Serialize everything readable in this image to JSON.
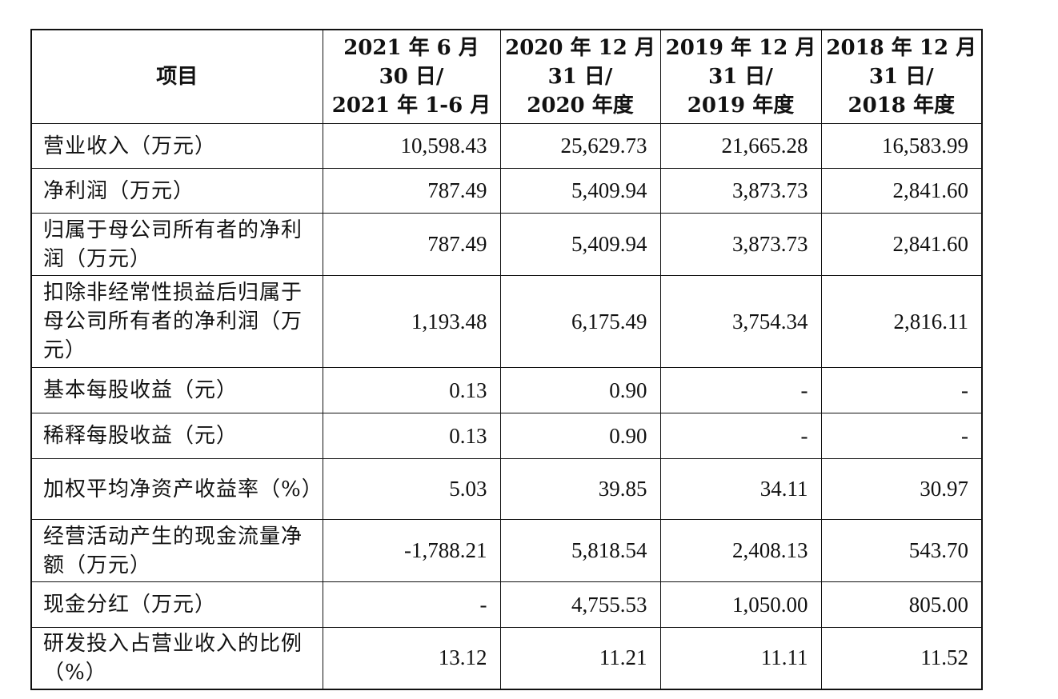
{
  "table": {
    "header": {
      "item": "项目",
      "periods": [
        [
          "2021 年 6 月",
          "30 日/",
          "2021 年 1-6 月"
        ],
        [
          "2020 年 12 月",
          "31 日/",
          "2020 年度"
        ],
        [
          "2019 年 12 月",
          "31 日/",
          "2019 年度"
        ],
        [
          "2018 年 12 月",
          "31 日/",
          "2018 年度"
        ]
      ]
    },
    "rows": [
      {
        "item": "营业收入（万元）",
        "values": [
          "10,598.43",
          "25,629.73",
          "21,665.28",
          "16,583.99"
        ]
      },
      {
        "item": "净利润（万元）",
        "values": [
          "787.49",
          "5,409.94",
          "3,873.73",
          "2,841.60"
        ]
      },
      {
        "item": "归属于母公司所有者的净利润（万元）",
        "values": [
          "787.49",
          "5,409.94",
          "3,873.73",
          "2,841.60"
        ]
      },
      {
        "item": "扣除非经常性损益后归属于母公司所有者的净利润（万元）",
        "values": [
          "1,193.48",
          "6,175.49",
          "3,754.34",
          "2,816.11"
        ]
      },
      {
        "item": "基本每股收益（元）",
        "values": [
          "0.13",
          "0.90",
          "-",
          "-"
        ]
      },
      {
        "item": "稀释每股收益（元）",
        "values": [
          "0.13",
          "0.90",
          "-",
          "-"
        ]
      },
      {
        "item": "加权平均净资产收益率（%）",
        "values": [
          "5.03",
          "39.85",
          "34.11",
          "30.97"
        ]
      },
      {
        "item": "经营活动产生的现金流量净额（万元）",
        "values": [
          "-1,788.21",
          "5,818.54",
          "2,408.13",
          "543.70"
        ]
      },
      {
        "item": "现金分红（万元）",
        "values": [
          "-",
          "4,755.53",
          "1,050.00",
          "805.00"
        ]
      },
      {
        "item": "研发投入占营业收入的比例（%）",
        "values": [
          "13.12",
          "11.21",
          "11.11",
          "11.52"
        ]
      }
    ]
  }
}
